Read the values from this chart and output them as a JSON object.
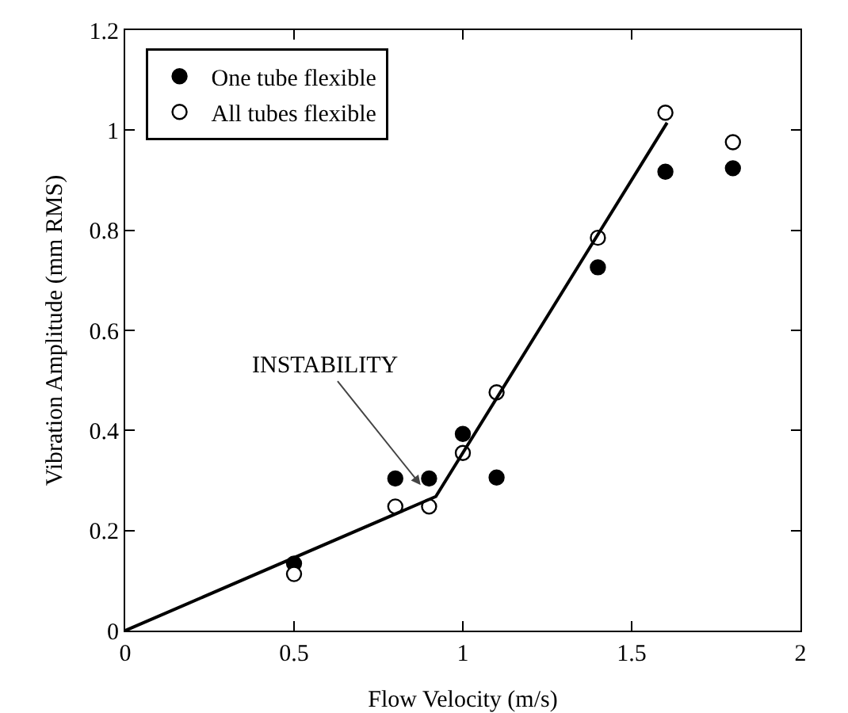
{
  "chart_data": {
    "type": "scatter",
    "xlabel": "Flow Velocity (m/s)",
    "ylabel": "Vibration Amplitude (mm RMS)",
    "x": [
      0.5,
      0.8,
      0.9,
      1.0,
      1.1,
      1.4,
      1.6,
      1.8
    ],
    "series": [
      {
        "name": "One tube flexible",
        "color": "#000000",
        "values": [
          0.134,
          0.304,
          0.304,
          0.393,
          0.306,
          0.726,
          0.917,
          0.924
        ]
      },
      {
        "name": "All tubes flexible",
        "color": "#ffffff",
        "values": [
          0.113,
          0.248,
          0.248,
          0.355,
          0.476,
          0.785,
          1.035,
          0.976
        ]
      },
      {
        "type": "line",
        "color": "#000000",
        "marker": "none",
        "x": [
          0,
          0.92,
          1.605
        ],
        "values": [
          0,
          0.268,
          1.015
        ]
      }
    ],
    "annotations": [
      {
        "text": "INSTABILITY",
        "x": 0.875,
        "y": 0.291
      }
    ],
    "xlim": [
      0,
      2
    ],
    "xticks": [
      0,
      0.5,
      1,
      1.5,
      2
    ],
    "ylim": [
      0,
      1.2
    ],
    "yticks": [
      0,
      0.2,
      0.4,
      0.6,
      0.8,
      1,
      1.2
    ],
    "grid": false,
    "legend": "top left",
    "marker": "circle"
  }
}
